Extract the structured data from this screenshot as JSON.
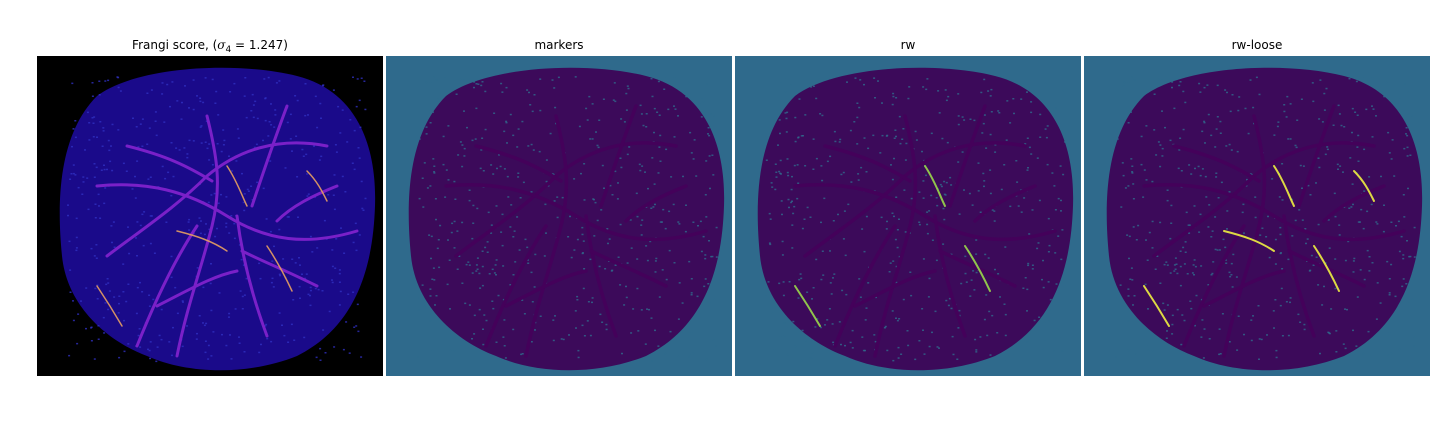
{
  "figure": {
    "panels": [
      {
        "id": "frangi",
        "title_prefix": "Frangi score, (",
        "title_sigma": "σ",
        "title_sub": "4",
        "title_suffix": " = 1.247)",
        "colormap": "plasma",
        "background": "#000000",
        "fill": "#1a0a8a",
        "vessel": "#7a20c8",
        "highlight": "#e8a060"
      },
      {
        "id": "markers",
        "title": "markers",
        "colormap": "viridis",
        "background": "#2f6a8c",
        "fill": "#3c0a5a",
        "vessel": "#44015a"
      },
      {
        "id": "rw",
        "title": "rw",
        "colormap": "viridis",
        "background": "#2f6a8c",
        "fill": "#3c0a5a",
        "vessel": "#44015a",
        "highlight": "#9ad84a"
      },
      {
        "id": "rw-loose",
        "title": "rw-loose",
        "colormap": "viridis",
        "background": "#2f6a8c",
        "fill": "#3c0a5a",
        "vessel": "#44015a",
        "highlight": "#f0f040"
      }
    ]
  }
}
